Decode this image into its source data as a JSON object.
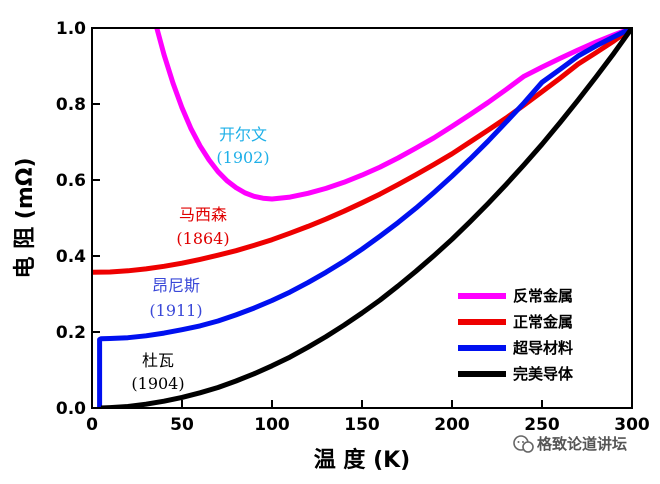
{
  "chart_data": {
    "type": "line",
    "title": "",
    "xlabel": "温 度 (K)",
    "ylabel": "电 阻 (mΩ)",
    "xlim": [
      0,
      300
    ],
    "ylim": [
      0,
      1.0
    ],
    "xticks": [
      0,
      50,
      100,
      150,
      200,
      250,
      300
    ],
    "xtick_labels": [
      "0",
      "50",
      "100",
      "150",
      "200",
      "250",
      "300"
    ],
    "yticks": [
      0.0,
      0.2,
      0.4,
      0.6,
      0.8,
      1.0
    ],
    "ytick_labels": [
      "0.0",
      "0.2",
      "0.4",
      "0.6",
      "0.8",
      "1.0"
    ],
    "series": [
      {
        "name": "反常金属",
        "color": "#ff00ff",
        "annotation_name": "开尔文",
        "annotation_year": "(1902)",
        "annotation_color": "#1fb0e8",
        "x": [
          36,
          40,
          45,
          50,
          55,
          60,
          65,
          70,
          75,
          80,
          85,
          90,
          95,
          100,
          110,
          120,
          130,
          140,
          150,
          160,
          170,
          180,
          190,
          200,
          210,
          220,
          230,
          240,
          250,
          260,
          270,
          280,
          290,
          300
        ],
        "y": [
          1.0,
          0.93,
          0.855,
          0.79,
          0.735,
          0.69,
          0.653,
          0.622,
          0.598,
          0.58,
          0.566,
          0.557,
          0.552,
          0.55,
          0.555,
          0.565,
          0.578,
          0.594,
          0.613,
          0.634,
          0.658,
          0.684,
          0.711,
          0.741,
          0.772,
          0.804,
          0.838,
          0.873,
          0.897,
          0.92,
          0.942,
          0.963,
          0.982,
          1.0
        ]
      },
      {
        "name": "正常金属",
        "color": "#ee0000",
        "annotation_name": "马西森",
        "annotation_year": "(1864)",
        "annotation_color": "#e00000",
        "x": [
          0,
          10,
          20,
          30,
          40,
          50,
          60,
          70,
          80,
          90,
          100,
          110,
          120,
          130,
          140,
          150,
          160,
          170,
          180,
          190,
          200,
          210,
          220,
          230,
          240,
          250,
          260,
          270,
          280,
          290,
          300
        ],
        "y": [
          0.357,
          0.358,
          0.361,
          0.366,
          0.373,
          0.381,
          0.391,
          0.402,
          0.414,
          0.428,
          0.443,
          0.46,
          0.478,
          0.497,
          0.518,
          0.54,
          0.563,
          0.588,
          0.614,
          0.641,
          0.669,
          0.7,
          0.731,
          0.763,
          0.797,
          0.832,
          0.868,
          0.905,
          0.935,
          0.966,
          1.0
        ]
      },
      {
        "name": "超导材料",
        "color": "#0010f0",
        "annotation_name": "昂尼斯",
        "annotation_year": "(1911)",
        "annotation_color": "#3a48d8",
        "x": [
          4.2,
          4.2,
          5,
          10,
          20,
          30,
          40,
          50,
          60,
          70,
          80,
          90,
          100,
          110,
          120,
          130,
          140,
          150,
          160,
          170,
          180,
          190,
          200,
          210,
          220,
          230,
          240,
          250,
          260,
          270,
          280,
          290,
          300
        ],
        "y": [
          0.0,
          0.18,
          0.182,
          0.183,
          0.185,
          0.19,
          0.197,
          0.206,
          0.216,
          0.229,
          0.245,
          0.263,
          0.283,
          0.305,
          0.33,
          0.357,
          0.386,
          0.418,
          0.452,
          0.488,
          0.526,
          0.567,
          0.61,
          0.655,
          0.702,
          0.752,
          0.803,
          0.857,
          0.891,
          0.926,
          0.953,
          0.977,
          1.0
        ]
      },
      {
        "name": "完美导体",
        "color": "#000000",
        "annotation_name": "杜瓦",
        "annotation_year": "(1904)",
        "annotation_color": "#000000",
        "x": [
          5,
          10,
          20,
          30,
          40,
          50,
          60,
          70,
          80,
          90,
          100,
          110,
          120,
          130,
          140,
          150,
          160,
          170,
          180,
          190,
          200,
          210,
          220,
          230,
          240,
          250,
          260,
          270,
          280,
          290,
          300
        ],
        "y": [
          0.0,
          0.001,
          0.004,
          0.01,
          0.018,
          0.028,
          0.04,
          0.054,
          0.071,
          0.09,
          0.111,
          0.134,
          0.16,
          0.188,
          0.218,
          0.25,
          0.284,
          0.321,
          0.36,
          0.401,
          0.444,
          0.49,
          0.538,
          0.588,
          0.64,
          0.694,
          0.751,
          0.81,
          0.871,
          0.934,
          1.0
        ]
      }
    ],
    "legend_position": "bottom-right"
  },
  "watermark": {
    "text": "格致论道讲坛",
    "icon": "wechat-icon"
  }
}
